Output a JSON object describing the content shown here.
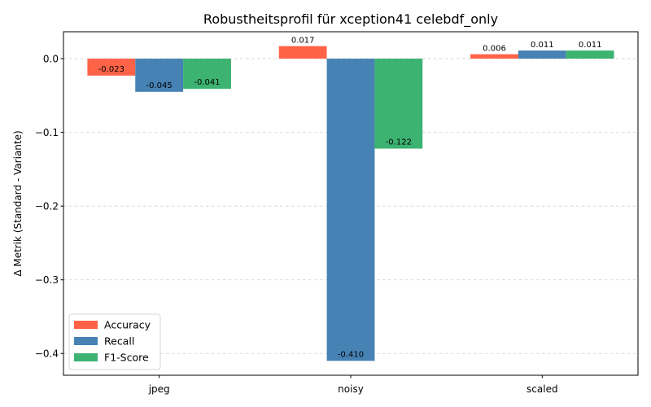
{
  "chart_data": {
    "type": "bar",
    "title": "Robustheitsprofil für xception41 celebdf_only",
    "xlabel": "",
    "ylabel": "Δ Metrik (Standard - Variante)",
    "categories": [
      "jpeg",
      "noisy",
      "scaled"
    ],
    "series": [
      {
        "name": "Accuracy",
        "color": "#ff6347",
        "values": [
          -0.023,
          0.017,
          0.006
        ],
        "labels": [
          "-0.023",
          "0.017",
          "0.006"
        ]
      },
      {
        "name": "Recall",
        "color": "#4682b4",
        "values": [
          -0.045,
          -0.41,
          0.011
        ],
        "labels": [
          "-0.045",
          "-0.410",
          "0.011"
        ]
      },
      {
        "name": "F1-Score",
        "color": "#3cb371",
        "values": [
          -0.041,
          -0.122,
          0.011
        ],
        "labels": [
          "-0.041",
          "-0.122",
          "0.011"
        ]
      }
    ],
    "ylim": [
      -0.4295,
      0.0365
    ],
    "yticks": [
      0.0,
      -0.1,
      -0.2,
      -0.3,
      -0.4
    ],
    "ytick_labels": [
      "0.0",
      "−0.1",
      "−0.2",
      "−0.3",
      "−0.4"
    ],
    "grid": true,
    "legend_position": "lower-left"
  }
}
